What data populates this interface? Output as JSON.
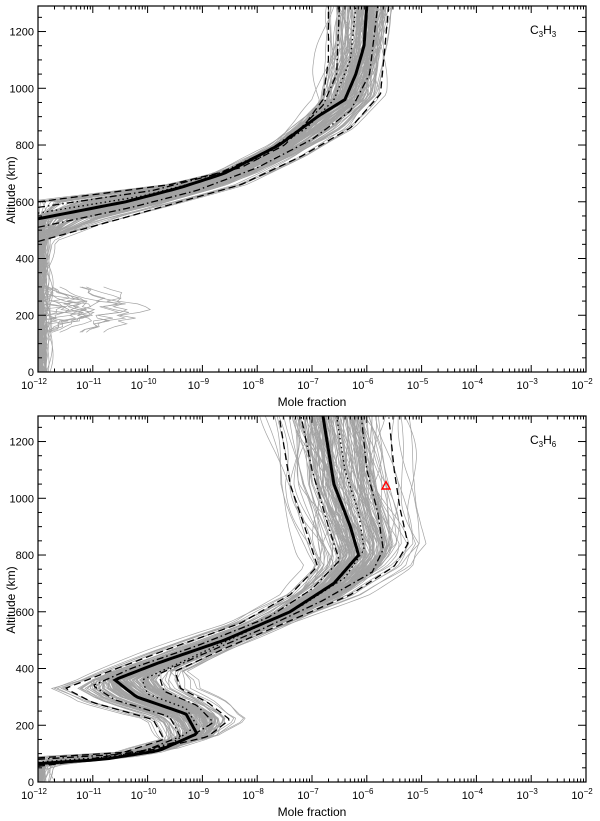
{
  "chart_data": [
    {
      "type": "line",
      "title": "",
      "species_label": {
        "base": "C",
        "sub1": "3",
        "mid": "H",
        "sub2": "3"
      },
      "xlabel": "Mole fraction",
      "ylabel": "Altitude (km)",
      "xscale": "log",
      "xlim": [
        1e-12,
        0.01
      ],
      "ylim": [
        0,
        1290
      ],
      "yticks": [
        0,
        200,
        400,
        600,
        800,
        1000,
        1200
      ],
      "xtick_exponents": [
        -12,
        -11,
        -10,
        -9,
        -8,
        -7,
        -6,
        -5,
        -4,
        -3,
        -2
      ],
      "legend": "none",
      "ensemble_color": "#a3a3a3",
      "ensemble_note": "dense gray envelope of ~200 Monte Carlo profiles",
      "series": [
        {
          "role": "median",
          "style": "solid-thick",
          "altitude": [
            540,
            600,
            650,
            700,
            800,
            900,
            960,
            1050,
            1150,
            1290
          ],
          "log10_x": [
            -12,
            -10.4,
            -9.4,
            -8.6,
            -7.6,
            -6.9,
            -6.4,
            -6.2,
            -6.05,
            -6.0
          ]
        },
        {
          "role": "mean",
          "style": "dotted",
          "altitude": [
            560,
            620,
            680,
            760,
            860,
            960,
            1100,
            1290
          ],
          "log10_x": [
            -12,
            -10.1,
            -8.9,
            -7.9,
            -7.1,
            -6.6,
            -6.3,
            -6.2
          ]
        },
        {
          "role": "upper-1sigma",
          "style": "dash-dot",
          "altitude": [
            510,
            580,
            640,
            720,
            820,
            920,
            1050,
            1290
          ],
          "log10_x": [
            -12,
            -10.3,
            -9.1,
            -8.0,
            -7.0,
            -6.3,
            -5.95,
            -5.8
          ]
        },
        {
          "role": "lower-1sigma",
          "style": "dash-dot",
          "altitude": [
            580,
            640,
            700,
            780,
            860,
            940,
            1050,
            1290
          ],
          "log10_x": [
            -12,
            -9.9,
            -8.7,
            -7.8,
            -7.2,
            -6.8,
            -6.55,
            -6.5
          ]
        },
        {
          "role": "upper-2sigma",
          "style": "dashed",
          "altitude": [
            460,
            540,
            600,
            660,
            760,
            860,
            980,
            1290
          ],
          "log10_x": [
            -12,
            -10.5,
            -9.4,
            -8.3,
            -7.2,
            -6.3,
            -5.75,
            -5.6
          ]
        },
        {
          "role": "lower-2sigma",
          "style": "dashed",
          "altitude": [
            600,
            660,
            720,
            800,
            880,
            960,
            1100,
            1290
          ],
          "log10_x": [
            -12,
            -9.6,
            -8.3,
            -7.5,
            -7.1,
            -6.8,
            -6.7,
            -6.7
          ]
        }
      ]
    },
    {
      "type": "line",
      "title": "",
      "species_label": {
        "base": "C",
        "sub1": "3",
        "mid": "H",
        "sub2": "6"
      },
      "xlabel": "Mole fraction",
      "ylabel": "Altitude (km)",
      "xscale": "log",
      "xlim": [
        1e-12,
        0.01
      ],
      "ylim": [
        0,
        1290
      ],
      "yticks": [
        0,
        200,
        400,
        600,
        800,
        1000,
        1200
      ],
      "xtick_exponents": [
        -12,
        -11,
        -10,
        -9,
        -8,
        -7,
        -6,
        -5,
        -4,
        -3,
        -2
      ],
      "legend": "none",
      "ensemble_color": "#a3a3a3",
      "observation": {
        "marker": "triangle",
        "color": "#ff0000",
        "log10_x": -5.65,
        "altitude": 1045
      },
      "series": [
        {
          "role": "median",
          "style": "solid-thick",
          "altitude": [
            65,
            80,
            110,
            170,
            240,
            300,
            360,
            420,
            500,
            600,
            700,
            800,
            900,
            1050,
            1290
          ],
          "log10_x": [
            -12,
            -10.8,
            -9.8,
            -9.1,
            -9.3,
            -10.2,
            -10.6,
            -9.8,
            -8.6,
            -7.4,
            -6.6,
            -6.15,
            -6.3,
            -6.6,
            -6.8
          ]
        },
        {
          "role": "mean",
          "style": "dotted",
          "altitude": [
            70,
            90,
            130,
            200,
            260,
            310,
            360,
            430,
            520,
            620,
            720,
            820,
            950,
            1100,
            1290
          ],
          "log10_x": [
            -12,
            -10.6,
            -9.6,
            -9.1,
            -9.3,
            -10.0,
            -10.1,
            -9.3,
            -8.3,
            -7.2,
            -6.4,
            -6.05,
            -6.15,
            -6.4,
            -6.55
          ]
        },
        {
          "role": "upper-1sigma",
          "style": "dash-dot",
          "altitude": [
            80,
            100,
            150,
            210,
            270,
            320,
            380,
            450,
            540,
            640,
            740,
            820,
            950,
            1100,
            1290
          ],
          "log10_x": [
            -12,
            -10.3,
            -9.3,
            -8.8,
            -9.1,
            -9.7,
            -9.8,
            -9.0,
            -7.9,
            -6.8,
            -5.9,
            -5.7,
            -5.8,
            -6.0,
            -6.1
          ]
        },
        {
          "role": "lower-1sigma",
          "style": "dash-dot",
          "altitude": [
            60,
            75,
            100,
            160,
            230,
            290,
            340,
            400,
            480,
            580,
            680,
            780,
            900,
            1100,
            1290
          ],
          "log10_x": [
            -12,
            -11.1,
            -10.2,
            -9.4,
            -9.6,
            -10.6,
            -11.0,
            -10.3,
            -9.1,
            -7.8,
            -7.0,
            -6.5,
            -6.7,
            -7.0,
            -7.2
          ]
        },
        {
          "role": "upper-2sigma",
          "style": "dashed",
          "altitude": [
            85,
            110,
            160,
            220,
            280,
            330,
            390,
            470,
            560,
            660,
            760,
            840,
            970,
            1100,
            1290
          ],
          "log10_x": [
            -12,
            -10.0,
            -8.9,
            -8.5,
            -8.9,
            -9.4,
            -9.5,
            -8.6,
            -7.5,
            -6.3,
            -5.5,
            -5.25,
            -5.4,
            -5.5,
            -5.6
          ]
        },
        {
          "role": "lower-2sigma",
          "style": "dashed",
          "altitude": [
            55,
            70,
            95,
            150,
            220,
            280,
            330,
            390,
            470,
            560,
            660,
            760,
            880,
            1050,
            1290
          ],
          "log10_x": [
            -12,
            -11.4,
            -10.6,
            -9.7,
            -9.9,
            -11.0,
            -11.5,
            -10.7,
            -9.6,
            -8.3,
            -7.4,
            -6.9,
            -7.1,
            -7.4,
            -7.6
          ]
        }
      ]
    }
  ]
}
